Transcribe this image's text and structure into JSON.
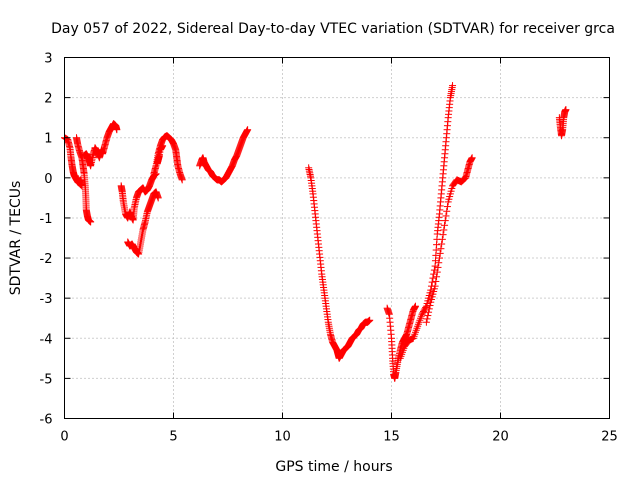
{
  "chart_data": {
    "type": "scatter",
    "title": "Day 057 of 2022, Sidereal Day-to-day VTEC variation (SDTVAR) for receiver grca",
    "xlabel": "GPS time / hours",
    "ylabel": "SDTVAR / TECUs",
    "xlim": [
      0,
      25
    ],
    "ylim": [
      -6,
      3
    ],
    "xticks": [
      0,
      5,
      10,
      15,
      20,
      25
    ],
    "yticks": [
      -6,
      -5,
      -4,
      -3,
      -2,
      -1,
      0,
      1,
      2,
      3
    ],
    "grid": true,
    "marker": "+",
    "series_color": "#ff0000",
    "series": [
      {
        "name": "SDTVAR",
        "segments": [
          [
            [
              0.0,
              1.0
            ],
            [
              0.15,
              0.95
            ],
            [
              0.25,
              0.75
            ],
            [
              0.3,
              0.5
            ],
            [
              0.35,
              0.3
            ],
            [
              0.4,
              0.15
            ],
            [
              0.45,
              0.05
            ],
            [
              0.55,
              -0.05
            ],
            [
              0.65,
              -0.1
            ],
            [
              0.75,
              -0.05
            ],
            [
              0.8,
              -0.2
            ],
            [
              0.6,
              -0.1
            ],
            [
              0.5,
              0.05
            ]
          ],
          [
            [
              0.55,
              1.0
            ],
            [
              0.6,
              0.85
            ],
            [
              0.7,
              0.65
            ],
            [
              0.8,
              0.5
            ],
            [
              0.85,
              0.3
            ],
            [
              0.9,
              0.1
            ],
            [
              0.95,
              -0.2
            ],
            [
              0.98,
              -0.5
            ],
            [
              1.0,
              -0.8
            ],
            [
              1.05,
              -0.95
            ],
            [
              1.1,
              -1.05
            ],
            [
              1.2,
              -1.1
            ]
          ],
          [
            [
              0.9,
              0.55
            ],
            [
              1.0,
              0.6
            ],
            [
              1.1,
              0.5
            ],
            [
              1.15,
              0.4
            ],
            [
              1.2,
              0.3
            ],
            [
              1.3,
              0.55
            ],
            [
              1.4,
              0.75
            ],
            [
              1.5,
              0.65
            ],
            [
              1.6,
              0.5
            ],
            [
              1.7,
              0.7
            ],
            [
              1.75,
              0.6
            ],
            [
              1.85,
              0.8
            ],
            [
              1.95,
              1.0
            ],
            [
              2.05,
              1.15
            ],
            [
              2.15,
              1.25
            ],
            [
              2.25,
              1.35
            ],
            [
              2.35,
              1.3
            ],
            [
              2.4,
              1.2
            ]
          ],
          [
            [
              2.6,
              -0.2
            ],
            [
              2.65,
              -0.35
            ],
            [
              2.7,
              -0.6
            ],
            [
              2.8,
              -0.9
            ],
            [
              2.9,
              -1.0
            ],
            [
              3.0,
              -0.85
            ],
            [
              3.1,
              -1.0
            ],
            [
              3.15,
              -1.05
            ],
            [
              3.2,
              -0.75
            ],
            [
              3.3,
              -0.5
            ],
            [
              3.4,
              -0.35
            ],
            [
              3.5,
              -0.3
            ],
            [
              3.6,
              -0.25
            ],
            [
              3.7,
              -0.35
            ],
            [
              3.8,
              -0.3
            ],
            [
              3.9,
              -0.2
            ],
            [
              4.0,
              -0.05
            ],
            [
              4.1,
              0.05
            ],
            [
              4.2,
              0.1
            ]
          ],
          [
            [
              2.9,
              -1.6
            ],
            [
              3.0,
              -1.7
            ],
            [
              3.1,
              -1.65
            ],
            [
              3.2,
              -1.75
            ],
            [
              3.3,
              -1.85
            ],
            [
              3.4,
              -1.9
            ],
            [
              3.5,
              -1.6
            ],
            [
              3.6,
              -1.3
            ],
            [
              3.7,
              -1.1
            ],
            [
              3.8,
              -0.85
            ],
            [
              3.9,
              -0.7
            ],
            [
              4.0,
              -0.55
            ],
            [
              4.1,
              -0.4
            ],
            [
              4.2,
              -0.35
            ],
            [
              4.3,
              -0.5
            ]
          ],
          [
            [
              4.1,
              0.1
            ],
            [
              4.2,
              0.3
            ],
            [
              4.3,
              0.6
            ],
            [
              4.4,
              0.8
            ],
            [
              4.5,
              0.95
            ],
            [
              4.6,
              1.02
            ],
            [
              4.7,
              1.05
            ],
            [
              4.8,
              1.0
            ],
            [
              4.9,
              0.95
            ],
            [
              5.0,
              0.85
            ],
            [
              5.1,
              0.7
            ],
            [
              5.15,
              0.5
            ],
            [
              5.2,
              0.3
            ],
            [
              5.3,
              0.1
            ],
            [
              5.4,
              -0.05
            ]
          ],
          [
            [
              4.35,
              0.55
            ],
            [
              4.3,
              0.45
            ],
            [
              4.25,
              0.35
            ],
            [
              4.4,
              0.7
            ],
            [
              4.5,
              0.8
            ]
          ],
          [
            [
              6.2,
              0.3
            ],
            [
              6.3,
              0.45
            ],
            [
              6.35,
              0.5
            ],
            [
              6.4,
              0.4
            ],
            [
              6.5,
              0.3
            ],
            [
              6.6,
              0.2
            ],
            [
              6.7,
              0.15
            ],
            [
              6.8,
              0.05
            ],
            [
              6.9,
              0.0
            ],
            [
              7.0,
              -0.05
            ],
            [
              7.1,
              -0.05
            ],
            [
              7.2,
              -0.1
            ],
            [
              7.3,
              -0.05
            ],
            [
              7.4,
              0.0
            ],
            [
              7.5,
              0.1
            ],
            [
              7.6,
              0.2
            ],
            [
              7.7,
              0.3
            ],
            [
              7.8,
              0.45
            ],
            [
              7.9,
              0.55
            ],
            [
              8.0,
              0.7
            ],
            [
              8.1,
              0.85
            ],
            [
              8.2,
              1.0
            ],
            [
              8.3,
              1.1
            ],
            [
              8.4,
              1.2
            ]
          ],
          [
            [
              11.2,
              0.25
            ],
            [
              11.3,
              0.0
            ],
            [
              11.4,
              -0.4
            ],
            [
              11.5,
              -0.9
            ],
            [
              11.6,
              -1.4
            ],
            [
              11.7,
              -1.9
            ],
            [
              11.8,
              -2.4
            ],
            [
              11.9,
              -2.8
            ],
            [
              12.0,
              -3.2
            ],
            [
              12.1,
              -3.6
            ],
            [
              12.2,
              -3.9
            ],
            [
              12.3,
              -4.1
            ],
            [
              12.4,
              -4.2
            ],
            [
              12.5,
              -4.3
            ],
            [
              12.55,
              -4.4
            ],
            [
              12.6,
              -4.5
            ],
            [
              12.7,
              -4.4
            ],
            [
              12.8,
              -4.3
            ],
            [
              12.9,
              -4.25
            ],
            [
              13.0,
              -4.2
            ],
            [
              13.1,
              -4.1
            ],
            [
              13.2,
              -4.0
            ],
            [
              13.3,
              -3.95
            ],
            [
              13.4,
              -3.9
            ],
            [
              13.5,
              -3.8
            ],
            [
              13.6,
              -3.75
            ],
            [
              13.7,
              -3.65
            ],
            [
              13.8,
              -3.6
            ],
            [
              13.9,
              -3.6
            ],
            [
              14.0,
              -3.55
            ]
          ],
          [
            [
              14.8,
              -3.25
            ],
            [
              14.9,
              -3.4
            ],
            [
              15.0,
              -4.0
            ],
            [
              15.05,
              -4.5
            ],
            [
              15.1,
              -4.9
            ],
            [
              15.15,
              -5.0
            ],
            [
              15.2,
              -4.85
            ],
            [
              15.3,
              -4.55
            ],
            [
              15.4,
              -4.3
            ],
            [
              15.5,
              -4.1
            ],
            [
              15.6,
              -4.0
            ],
            [
              15.7,
              -3.9
            ],
            [
              15.8,
              -3.7
            ],
            [
              15.9,
              -3.5
            ],
            [
              16.0,
              -3.3
            ],
            [
              16.1,
              -3.2
            ]
          ],
          [
            [
              15.4,
              -4.5
            ],
            [
              15.6,
              -4.2
            ],
            [
              15.8,
              -4.05
            ],
            [
              16.0,
              -4.0
            ],
            [
              16.2,
              -3.7
            ],
            [
              16.4,
              -3.4
            ],
            [
              16.6,
              -3.2
            ],
            [
              16.8,
              -2.8
            ],
            [
              17.0,
              -2.2
            ],
            [
              17.1,
              -1.4
            ],
            [
              17.2,
              -0.9
            ],
            [
              17.3,
              -0.3
            ],
            [
              17.4,
              0.3
            ],
            [
              17.5,
              0.9
            ],
            [
              17.6,
              1.5
            ],
            [
              17.7,
              2.0
            ],
            [
              17.8,
              2.3
            ]
          ],
          [
            [
              16.6,
              -3.6
            ],
            [
              16.8,
              -3.1
            ],
            [
              17.0,
              -2.7
            ],
            [
              17.2,
              -2.0
            ],
            [
              17.4,
              -1.3
            ],
            [
              17.6,
              -0.6
            ],
            [
              17.8,
              -0.2
            ],
            [
              18.0,
              -0.05
            ],
            [
              18.2,
              -0.1
            ],
            [
              18.4,
              0.0
            ],
            [
              18.5,
              0.2
            ],
            [
              18.6,
              0.4
            ],
            [
              18.7,
              0.5
            ]
          ],
          [
            [
              22.7,
              1.5
            ],
            [
              22.75,
              1.25
            ],
            [
              22.8,
              1.05
            ],
            [
              22.85,
              1.2
            ],
            [
              22.9,
              1.5
            ],
            [
              22.95,
              1.65
            ],
            [
              23.0,
              1.7
            ]
          ]
        ]
      }
    ]
  }
}
